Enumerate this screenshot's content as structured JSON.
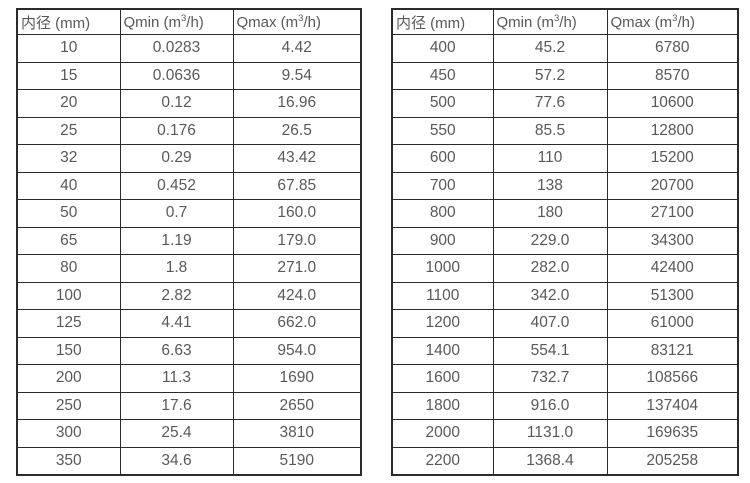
{
  "colors": {
    "background": "#ffffff",
    "border": "#2b2b2b",
    "text": "#595959"
  },
  "headers": {
    "diameter": "内径 (mm)",
    "qmin_base": "Qmin (m",
    "qmin_sup": "3",
    "qmin_rest": "/h)",
    "qmax_base": "Qmax (m",
    "qmax_sup": "3",
    "qmax_rest": "/h)"
  },
  "tables": [
    {
      "rows": [
        [
          "10",
          "0.0283",
          "4.42"
        ],
        [
          "15",
          "0.0636",
          "9.54"
        ],
        [
          "20",
          "0.12",
          "16.96"
        ],
        [
          "25",
          "0.176",
          "26.5"
        ],
        [
          "32",
          "0.29",
          "43.42"
        ],
        [
          "40",
          "0.452",
          "67.85"
        ],
        [
          "50",
          "0.7",
          "160.0"
        ],
        [
          "65",
          "1.19",
          "179.0"
        ],
        [
          "80",
          "1.8",
          "271.0"
        ],
        [
          "100",
          "2.82",
          "424.0"
        ],
        [
          "125",
          "4.41",
          "662.0"
        ],
        [
          "150",
          "6.63",
          "954.0"
        ],
        [
          "200",
          "11.3",
          "1690"
        ],
        [
          "250",
          "17.6",
          "2650"
        ],
        [
          "300",
          "25.4",
          "3810"
        ],
        [
          "350",
          "34.6",
          "5190"
        ]
      ]
    },
    {
      "rows": [
        [
          "400",
          "45.2",
          "6780"
        ],
        [
          "450",
          "57.2",
          "8570"
        ],
        [
          "500",
          "77.6",
          "10600"
        ],
        [
          "550",
          "85.5",
          "12800"
        ],
        [
          "600",
          "110",
          "15200"
        ],
        [
          "700",
          "138",
          "20700"
        ],
        [
          "800",
          "180",
          "27100"
        ],
        [
          "900",
          "229.0",
          "34300"
        ],
        [
          "1000",
          "282.0",
          "42400"
        ],
        [
          "1100",
          "342.0",
          "51300"
        ],
        [
          "1200",
          "407.0",
          "61000"
        ],
        [
          "1400",
          "554.1",
          "83121"
        ],
        [
          "1600",
          "732.7",
          "108566"
        ],
        [
          "1800",
          "916.0",
          "137404"
        ],
        [
          "2000",
          "1131.0",
          "169635"
        ],
        [
          "2200",
          "1368.4",
          "205258"
        ]
      ]
    }
  ]
}
